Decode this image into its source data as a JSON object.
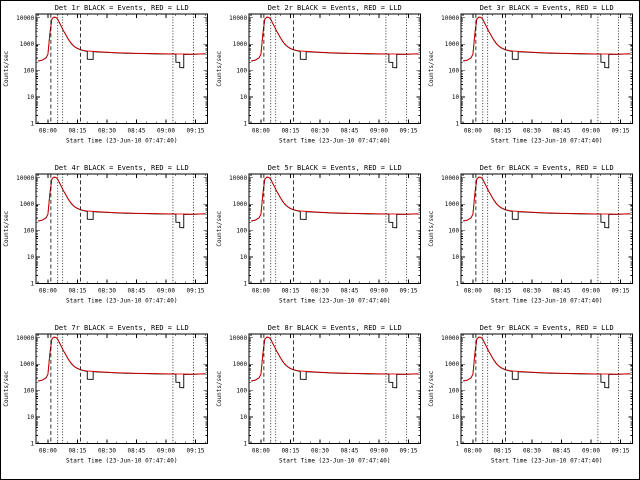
{
  "chart_defaults": {
    "type": "line",
    "xlabel": "Start Time (23-Jun-10 07:47:40)",
    "ylabel": "Counts/sec",
    "x_tick_labels": [
      "08:00",
      "08:15",
      "08:30",
      "08:45",
      "09:00",
      "09:15"
    ],
    "x_tick_minutes": [
      0,
      15,
      30,
      45,
      60,
      75
    ],
    "xlim_minutes": [
      -6,
      81
    ],
    "ylim": [
      1,
      14000
    ],
    "y_tick_values": [
      1,
      10,
      100,
      1000,
      10000
    ],
    "y_scale": "log",
    "grid": "off",
    "legend": "in-title",
    "guide_lines": {
      "dashed_minutes": [
        1.5,
        16.5
      ],
      "dotted_minutes": [
        5,
        7.5,
        63.5,
        74
      ]
    },
    "series": [
      {
        "name": "Events",
        "color": "#000000",
        "points_ref": "events"
      },
      {
        "name": "LLD",
        "color": "#dd0000",
        "points_ref": "lld"
      }
    ]
  },
  "series_profiles": {
    "events": [
      [
        -5,
        230
      ],
      [
        -3,
        245
      ],
      [
        -1,
        300
      ],
      [
        0,
        420
      ],
      [
        1,
        2500
      ],
      [
        2,
        9000
      ],
      [
        3,
        10500
      ],
      [
        4,
        10300
      ],
      [
        5,
        8800
      ],
      [
        6,
        6200
      ],
      [
        7,
        4400
      ],
      [
        8,
        3100
      ],
      [
        9,
        2300
      ],
      [
        10,
        1700
      ],
      [
        11,
        1300
      ],
      [
        12,
        1030
      ],
      [
        13,
        860
      ],
      [
        14,
        755
      ],
      [
        15,
        685
      ],
      [
        16,
        635
      ],
      [
        17,
        600
      ],
      [
        18,
        572
      ],
      [
        19,
        552
      ],
      [
        20,
        538
      ],
      [
        20,
        272
      ],
      [
        23,
        266
      ],
      [
        23,
        522
      ],
      [
        26,
        505
      ],
      [
        30,
        486
      ],
      [
        35,
        468
      ],
      [
        40,
        456
      ],
      [
        45,
        447
      ],
      [
        50,
        440
      ],
      [
        55,
        433
      ],
      [
        58,
        429
      ],
      [
        61,
        425
      ],
      [
        63,
        422
      ],
      [
        65,
        420
      ],
      [
        65,
        208
      ],
      [
        67,
        204
      ],
      [
        67,
        130
      ],
      [
        69,
        128
      ],
      [
        69,
        416
      ],
      [
        72,
        414
      ],
      [
        75,
        418
      ],
      [
        78,
        426
      ],
      [
        80,
        433
      ]
    ],
    "lld": [
      [
        -5,
        233
      ],
      [
        -3,
        248
      ],
      [
        -1,
        304
      ],
      [
        0,
        425
      ],
      [
        1,
        2530
      ],
      [
        2,
        9100
      ],
      [
        3,
        10600
      ],
      [
        4,
        10400
      ],
      [
        5,
        8900
      ],
      [
        6,
        6300
      ],
      [
        7,
        4470
      ],
      [
        8,
        3150
      ],
      [
        9,
        2340
      ],
      [
        10,
        1730
      ],
      [
        11,
        1330
      ],
      [
        12,
        1050
      ],
      [
        13,
        880
      ],
      [
        14,
        770
      ],
      [
        15,
        700
      ],
      [
        16,
        650
      ],
      [
        17,
        615
      ],
      [
        18,
        588
      ],
      [
        19,
        568
      ],
      [
        20,
        553
      ],
      [
        23,
        537
      ],
      [
        26,
        520
      ],
      [
        30,
        500
      ],
      [
        35,
        480
      ],
      [
        40,
        466
      ],
      [
        45,
        456
      ],
      [
        50,
        448
      ],
      [
        55,
        441
      ],
      [
        58,
        437
      ],
      [
        61,
        433
      ],
      [
        63,
        430
      ],
      [
        65,
        428
      ],
      [
        69,
        424
      ],
      [
        72,
        421
      ],
      [
        75,
        424
      ],
      [
        78,
        430
      ],
      [
        80,
        436
      ]
    ]
  },
  "chart_data": [
    {
      "type": "line",
      "title": "Det 1r BLACK = Events, RED = LLD"
    },
    {
      "type": "line",
      "title": "Det 2r BLACK = Events, RED = LLD"
    },
    {
      "type": "line",
      "title": "Det 3r BLACK = Events, RED = LLD"
    },
    {
      "type": "line",
      "title": "Det 4r BLACK = Events, RED = LLD"
    },
    {
      "type": "line",
      "title": "Det 5r BLACK = Events, RED = LLD"
    },
    {
      "type": "line",
      "title": "Det 6r BLACK = Events, RED = LLD"
    },
    {
      "type": "line",
      "title": "Det 7r BLACK = Events, RED = LLD"
    },
    {
      "type": "line",
      "title": "Det 8r BLACK = Events, RED = LLD"
    },
    {
      "type": "line",
      "title": "Det 9r BLACK = Events, RED = LLD"
    }
  ]
}
